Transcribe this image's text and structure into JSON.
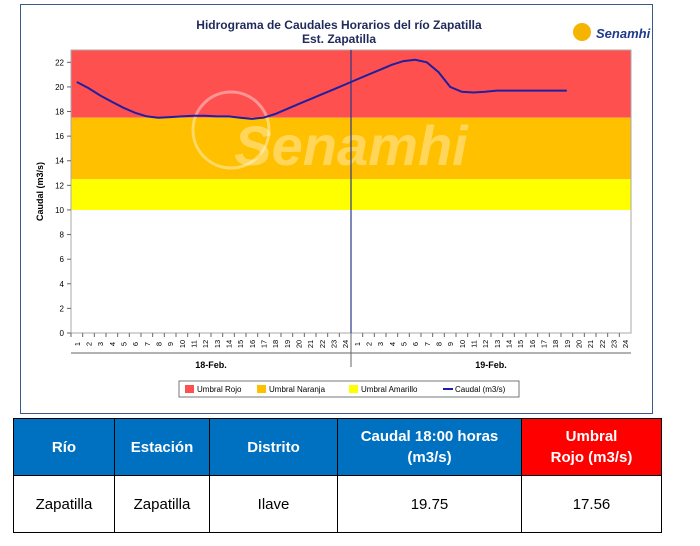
{
  "chart_data": {
    "type": "line",
    "title": "Hidrograma de Caudales Horarios del río Zapatilla",
    "subtitle": "Est. Zapatilla",
    "ylabel": "Caudal  (m3/s)",
    "ylim": [
      0,
      23
    ],
    "yticks": [
      0,
      2,
      4,
      6,
      8,
      10,
      12,
      14,
      16,
      18,
      20,
      22
    ],
    "xticks": [
      "1",
      "2",
      "3",
      "4",
      "5",
      "6",
      "7",
      "8",
      "9",
      "10",
      "11",
      "12",
      "13",
      "14",
      "15",
      "16",
      "17",
      "18",
      "19",
      "20",
      "21",
      "22",
      "23",
      "24",
      "1",
      "2",
      "3",
      "4",
      "5",
      "6",
      "7",
      "8",
      "9",
      "10",
      "11",
      "12",
      "13",
      "14",
      "15",
      "16",
      "17",
      "18",
      "19",
      "20",
      "21",
      "22",
      "23",
      "24"
    ],
    "day_labels": [
      "18-Feb.",
      "19-Feb."
    ],
    "legend": [
      "Umbral Rojo",
      "Umbral Naranja",
      "Umbral Amarillo",
      "Caudal (m3/s)"
    ],
    "bands": [
      {
        "name": "Umbral Rojo",
        "from": 17.5,
        "to": 23,
        "color": "#ff5050"
      },
      {
        "name": "Umbral Naranja",
        "from": 12.5,
        "to": 17.5,
        "color": "#ffc000"
      },
      {
        "name": "Umbral Amarillo",
        "from": 10,
        "to": 12.5,
        "color": "#ffff00"
      }
    ],
    "series": [
      {
        "name": "Caudal (m3/s)",
        "color": "#1f1fa0",
        "values": [
          20.4,
          19.9,
          19.3,
          18.8,
          18.3,
          17.9,
          17.6,
          17.5,
          17.55,
          17.6,
          17.65,
          17.65,
          17.6,
          17.6,
          17.5,
          17.4,
          17.5,
          17.8,
          18.2,
          18.6,
          19.0,
          19.4,
          19.8,
          20.2,
          20.6,
          21.0,
          21.4,
          21.8,
          22.1,
          22.2,
          22.0,
          21.2,
          20.0,
          19.6,
          19.55,
          19.6,
          19.7,
          19.7,
          19.7,
          19.7,
          19.7,
          19.7,
          19.7
        ]
      }
    ],
    "current_marker_x": 25,
    "grid": false
  },
  "logo": {
    "text": "Senamhi"
  },
  "watermark": {
    "text": "Senamhi"
  },
  "table": {
    "headers": [
      "Río",
      "Estación",
      "Distrito",
      "Caudal  18:00 horas\n(m3/s)",
      "Umbral\nRojo (m3/s)"
    ],
    "row": [
      "Zapatilla",
      "Zapatilla",
      "Ilave",
      "19.75",
      "17.56"
    ]
  },
  "colors": {
    "header_blue": "#0070c0",
    "header_red": "#ff0000",
    "line": "#1f1fa0"
  }
}
